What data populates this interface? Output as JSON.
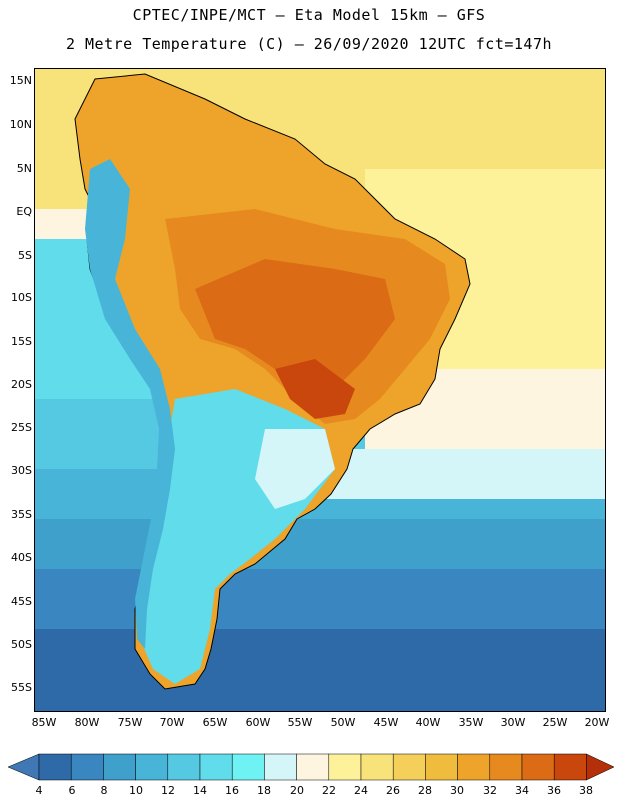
{
  "title_line1": "CPTEC/INPE/MCT –  Eta Model 15km – GFS",
  "title_line2": "2 Metre Temperature (C) – 26/09/2020 12UTC fct=147h",
  "map": {
    "lat_labels": [
      "15N",
      "10N",
      "5N",
      "EQ",
      "5S",
      "10S",
      "15S",
      "20S",
      "25S",
      "30S",
      "35S",
      "40S",
      "45S",
      "50S",
      "55S"
    ],
    "lon_labels": [
      "85W",
      "80W",
      "75W",
      "70W",
      "65W",
      "60W",
      "55W",
      "50W",
      "45W",
      "40W",
      "35W",
      "30W",
      "25W",
      "20W"
    ]
  },
  "colorbar": {
    "labels": [
      "4",
      "6",
      "8",
      "10",
      "12",
      "14",
      "16",
      "18",
      "20",
      "22",
      "24",
      "26",
      "28",
      "30",
      "32",
      "34",
      "36",
      "38"
    ],
    "colors": [
      "#3f78b4",
      "#2f6aa8",
      "#3a86c0",
      "#3fa0cc",
      "#47b4d8",
      "#56c9e2",
      "#60dceb",
      "#6ef2f4",
      "#d4f6f8",
      "#fdf5e0",
      "#fdf29a",
      "#f8e37a",
      "#f4d05a",
      "#efbc3d",
      "#eea42a",
      "#e68a1f",
      "#db6b14",
      "#c9470d",
      "#b52f0a"
    ]
  }
}
